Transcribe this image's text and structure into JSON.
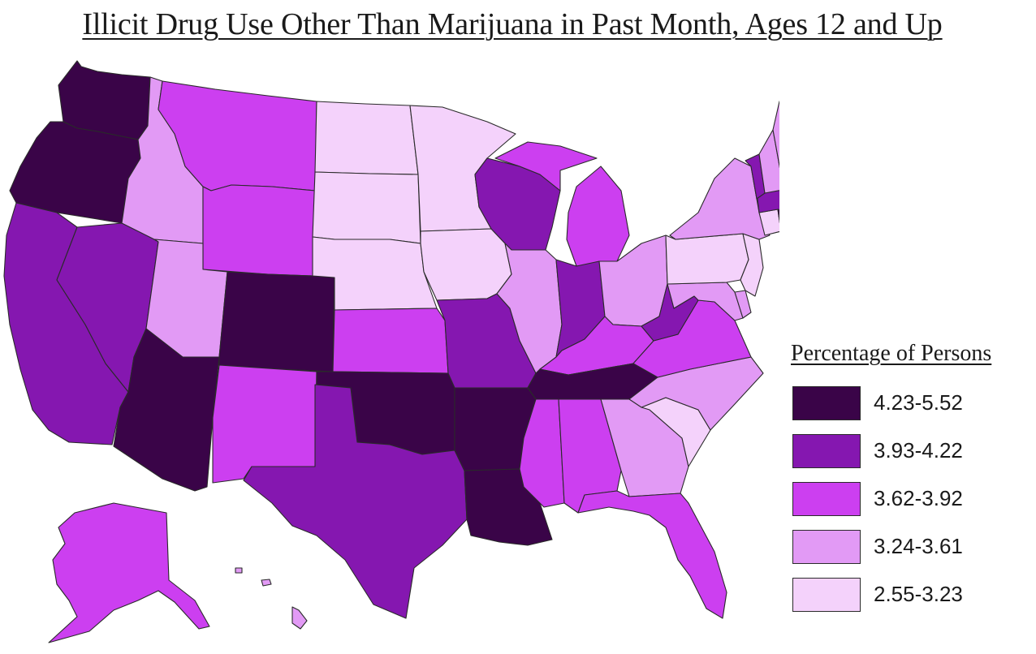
{
  "title": "Illicit Drug Use Other Than Marijuana in Past Month, Ages 12 and Up",
  "legend": {
    "title": "Percentage of Persons",
    "items": [
      {
        "label": "4.23-5.52",
        "color": "#3a0448"
      },
      {
        "label": "3.93-4.22",
        "color": "#8517b0"
      },
      {
        "label": "3.62-3.92",
        "color": "#cc3ff0"
      },
      {
        "label": "3.24-3.61",
        "color": "#e29af5"
      },
      {
        "label": "2.55-3.23",
        "color": "#f4d2fb"
      }
    ]
  },
  "states": [
    {
      "id": "WA",
      "name": "Washington",
      "category": 0
    },
    {
      "id": "OR",
      "name": "Oregon",
      "category": 0
    },
    {
      "id": "CA",
      "name": "California",
      "category": 1
    },
    {
      "id": "NV",
      "name": "Nevada",
      "category": 1
    },
    {
      "id": "ID",
      "name": "Idaho",
      "category": 3
    },
    {
      "id": "MT",
      "name": "Montana",
      "category": 2
    },
    {
      "id": "WY",
      "name": "Wyoming",
      "category": 2
    },
    {
      "id": "UT",
      "name": "Utah",
      "category": 3
    },
    {
      "id": "AZ",
      "name": "Arizona",
      "category": 0
    },
    {
      "id": "CO",
      "name": "Colorado",
      "category": 0
    },
    {
      "id": "NM",
      "name": "New Mexico",
      "category": 2
    },
    {
      "id": "ND",
      "name": "North Dakota",
      "category": 4
    },
    {
      "id": "SD",
      "name": "South Dakota",
      "category": 4
    },
    {
      "id": "NE",
      "name": "Nebraska",
      "category": 4
    },
    {
      "id": "KS",
      "name": "Kansas",
      "category": 2
    },
    {
      "id": "OK",
      "name": "Oklahoma",
      "category": 0
    },
    {
      "id": "TX",
      "name": "Texas",
      "category": 1
    },
    {
      "id": "MN",
      "name": "Minnesota",
      "category": 4
    },
    {
      "id": "IA",
      "name": "Iowa",
      "category": 4
    },
    {
      "id": "MO",
      "name": "Missouri",
      "category": 1
    },
    {
      "id": "AR",
      "name": "Arkansas",
      "category": 0
    },
    {
      "id": "LA",
      "name": "Louisiana",
      "category": 0
    },
    {
      "id": "WI",
      "name": "Wisconsin",
      "category": 1
    },
    {
      "id": "IL",
      "name": "Illinois",
      "category": 3
    },
    {
      "id": "MI",
      "name": "Michigan",
      "category": 2
    },
    {
      "id": "IN",
      "name": "Indiana",
      "category": 1
    },
    {
      "id": "OH",
      "name": "Ohio",
      "category": 3
    },
    {
      "id": "KY",
      "name": "Kentucky",
      "category": 2
    },
    {
      "id": "TN",
      "name": "Tennessee",
      "category": 0
    },
    {
      "id": "MS",
      "name": "Mississippi",
      "category": 2
    },
    {
      "id": "AL",
      "name": "Alabama",
      "category": 2
    },
    {
      "id": "GA",
      "name": "Georgia",
      "category": 3
    },
    {
      "id": "FL",
      "name": "Florida",
      "category": 2
    },
    {
      "id": "SC",
      "name": "South Carolina",
      "category": 4
    },
    {
      "id": "NC",
      "name": "North Carolina",
      "category": 3
    },
    {
      "id": "VA",
      "name": "Virginia",
      "category": 2
    },
    {
      "id": "WV",
      "name": "West Virginia",
      "category": 1
    },
    {
      "id": "MD",
      "name": "Maryland",
      "category": 3
    },
    {
      "id": "DE",
      "name": "Delaware",
      "category": 3
    },
    {
      "id": "PA",
      "name": "Pennsylvania",
      "category": 4
    },
    {
      "id": "NJ",
      "name": "New Jersey",
      "category": 4
    },
    {
      "id": "NY",
      "name": "New York",
      "category": 3
    },
    {
      "id": "CT",
      "name": "Connecticut",
      "category": 4
    },
    {
      "id": "RI",
      "name": "Rhode Island",
      "category": 0
    },
    {
      "id": "MA",
      "name": "Massachusetts",
      "category": 1
    },
    {
      "id": "VT",
      "name": "Vermont",
      "category": 1
    },
    {
      "id": "NH",
      "name": "New Hampshire",
      "category": 3
    },
    {
      "id": "ME",
      "name": "Maine",
      "category": 3
    },
    {
      "id": "AK",
      "name": "Alaska",
      "category": 2
    },
    {
      "id": "HI",
      "name": "Hawaii",
      "category": 3
    }
  ]
}
